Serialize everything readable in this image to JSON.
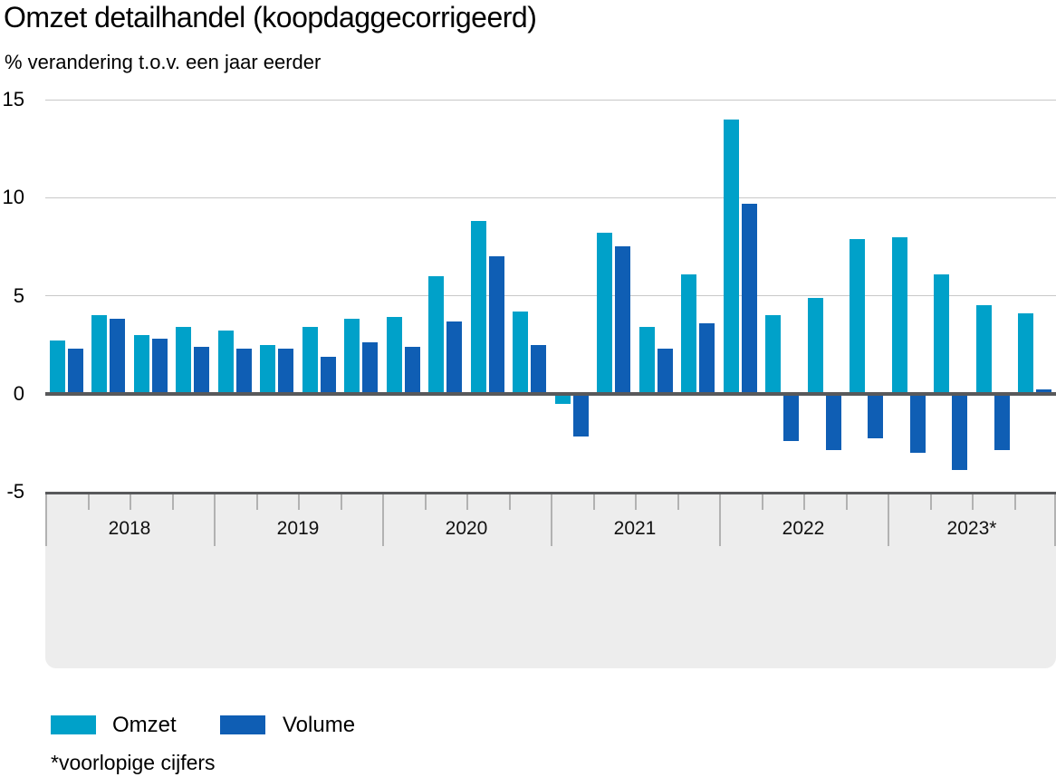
{
  "title": "Omzet detailhandel (koopdaggecorrigeerd)",
  "subtitle": "% verandering t.o.v. een jaar eerder",
  "footnote": "*voorlopige cijfers",
  "colors": {
    "omzet": "#00a1c9",
    "volume": "#0f5eb4",
    "zero_line": "#58595b",
    "gridline": "#c8c8c8",
    "axis_box_bg": "#ededed",
    "tick": "#b2b2b2",
    "logo_gray": "#9c9c9c"
  },
  "legend": [
    {
      "label": "Omzet",
      "color": "#00a1c9"
    },
    {
      "label": "Volume",
      "color": "#0f5eb4"
    }
  ],
  "y_axis": {
    "ticks": [
      15,
      10,
      5,
      0,
      -5
    ]
  },
  "chart_data": {
    "type": "bar",
    "title": "Omzet detailhandel (koopdaggecorrigeerd)",
    "ylabel": "% verandering t.o.v. een jaar eerder",
    "ylim": [
      -5,
      15
    ],
    "grid": "horizontal",
    "legend_position": "bottom",
    "years": [
      "2018",
      "2019",
      "2020",
      "2021",
      "2022",
      "2023*"
    ],
    "categories": [
      "2018 Q1",
      "2018 Q2",
      "2018 Q3",
      "2018 Q4",
      "2019 Q1",
      "2019 Q2",
      "2019 Q3",
      "2019 Q4",
      "2020 Q1",
      "2020 Q2",
      "2020 Q3",
      "2020 Q4",
      "2021 Q1",
      "2021 Q2",
      "2021 Q3",
      "2021 Q4",
      "2022 Q1",
      "2022 Q2",
      "2022 Q3",
      "2022 Q4",
      "2023 Q1",
      "2023 Q2",
      "2023 Q3",
      "2023 Q4"
    ],
    "series": [
      {
        "name": "Omzet",
        "values": [
          2.7,
          4.0,
          3.0,
          3.4,
          3.2,
          2.5,
          3.4,
          3.8,
          3.9,
          6.0,
          8.8,
          4.2,
          -0.5,
          8.2,
          3.4,
          6.1,
          14.0,
          4.0,
          4.9,
          7.9,
          8.0,
          6.1,
          4.5,
          4.1
        ]
      },
      {
        "name": "Volume",
        "values": [
          2.3,
          3.8,
          2.8,
          2.4,
          2.3,
          2.3,
          1.9,
          2.6,
          2.4,
          3.7,
          7.0,
          2.5,
          -2.2,
          7.5,
          2.3,
          3.6,
          9.7,
          -2.4,
          -2.9,
          -2.3,
          -3.0,
          -3.9,
          -2.9,
          0.2
        ]
      }
    ]
  }
}
